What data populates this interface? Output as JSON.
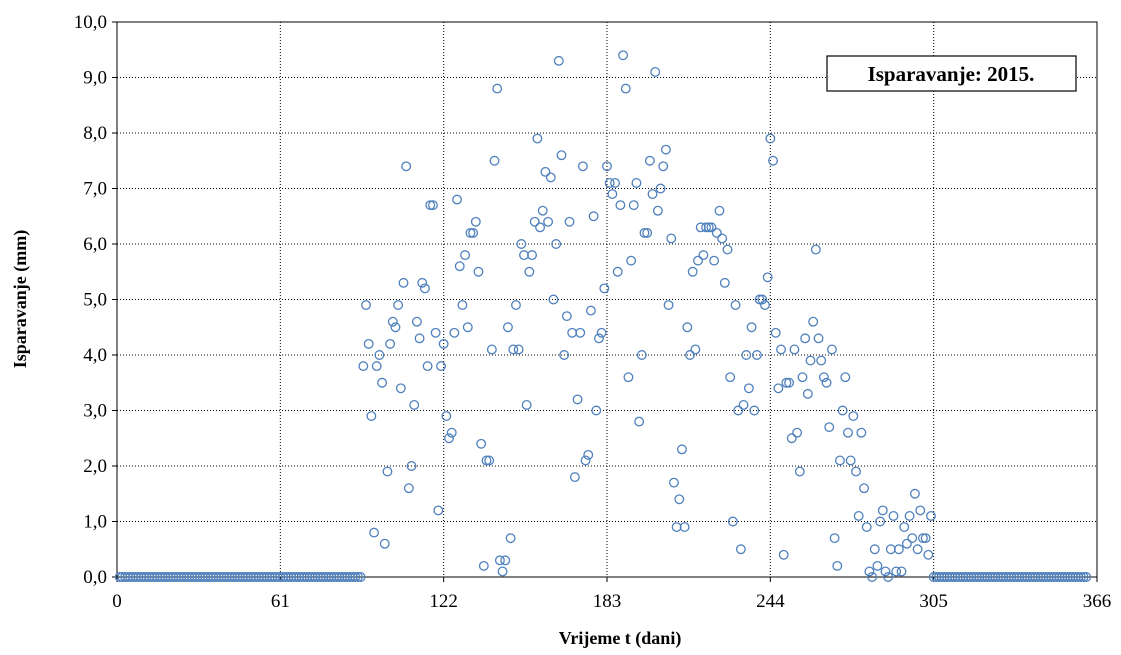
{
  "chart_data": {
    "type": "scatter",
    "title": "Isparavanje: 2015.",
    "xlabel": "Vrijeme  t (dani)",
    "ylabel": "Isparavanje  (mm)",
    "xlim": [
      0,
      366
    ],
    "ylim": [
      0,
      10
    ],
    "x_ticks": [
      "0",
      "61",
      "122",
      "183",
      "244",
      "305",
      "366"
    ],
    "y_ticks": [
      "0,0",
      "1,0",
      "2,0",
      "3,0",
      "4,0",
      "5,0",
      "6,0",
      "7,0",
      "8,0",
      "9,0",
      "10,0"
    ],
    "grid": "dotted",
    "legend_position": "top-right",
    "marker_color": "#4f81bd",
    "series": [
      {
        "values": [
          0,
          0,
          0,
          0,
          0,
          0,
          0,
          0,
          0,
          0,
          0,
          0,
          0,
          0,
          0,
          0,
          0,
          0,
          0,
          0,
          0,
          0,
          0,
          0,
          0,
          0,
          0,
          0,
          0,
          0,
          0,
          0,
          0,
          0,
          0,
          0,
          0,
          0,
          0,
          0,
          0,
          0,
          0,
          0,
          0,
          0,
          0,
          0,
          0,
          0,
          0,
          0,
          0,
          0,
          0,
          0,
          0,
          0,
          0,
          0,
          0,
          0,
          0,
          0,
          0,
          0,
          0,
          0,
          0,
          0,
          0,
          0,
          0,
          0,
          0,
          0,
          0,
          0,
          0,
          0,
          0,
          0,
          0,
          0,
          0,
          0,
          0,
          0,
          0,
          0,
          0,
          3.8,
          4.9,
          4.2,
          2.9,
          0.8,
          3.8,
          4.0,
          3.5,
          0.6,
          1.9,
          4.2,
          4.6,
          4.5,
          4.9,
          3.4,
          5.3,
          7.4,
          1.6,
          2.0,
          3.1,
          4.6,
          4.3,
          5.3,
          5.2,
          3.8,
          6.7,
          6.7,
          4.4,
          1.2,
          3.8,
          4.2,
          2.9,
          2.5,
          2.6,
          4.4,
          6.8,
          5.6,
          4.9,
          5.8,
          4.5,
          6.2,
          6.2,
          6.4,
          5.5,
          2.4,
          0.2,
          2.1,
          2.1,
          4.1,
          7.5,
          8.8,
          0.3,
          0.1,
          0.3,
          4.5,
          0.7,
          4.1,
          4.9,
          4.1,
          6.0,
          5.8,
          3.1,
          5.5,
          5.8,
          6.4,
          7.9,
          6.3,
          6.6,
          7.3,
          6.4,
          7.2,
          5.0,
          6.0,
          9.3,
          7.6,
          4.0,
          4.7,
          6.4,
          4.4,
          1.8,
          3.2,
          4.4,
          7.4,
          2.1,
          2.2,
          4.8,
          6.5,
          3.0,
          4.3,
          4.4,
          5.2,
          7.4,
          7.1,
          6.9,
          7.1,
          5.5,
          6.7,
          9.4,
          8.8,
          3.6,
          5.7,
          6.7,
          7.1,
          2.8,
          4.0,
          6.2,
          6.2,
          7.5,
          6.9,
          9.1,
          6.6,
          7.0,
          7.4,
          7.7,
          4.9,
          6.1,
          1.7,
          0.9,
          1.4,
          2.3,
          0.9,
          4.5,
          4.0,
          5.5,
          4.1,
          5.7,
          6.3,
          5.8,
          6.3,
          6.3,
          6.3,
          5.7,
          6.2,
          6.6,
          6.1,
          5.3,
          5.9,
          3.6,
          1.0,
          4.9,
          3.0,
          0.5,
          3.1,
          4.0,
          3.4,
          4.5,
          3.0,
          4.0,
          5.0,
          5.0,
          4.9,
          5.4,
          7.9,
          7.5,
          4.4,
          3.4,
          4.1,
          0.4,
          3.5,
          3.5,
          2.5,
          4.1,
          2.6,
          1.9,
          3.6,
          4.3,
          3.3,
          3.9,
          4.6,
          5.9,
          4.3,
          3.9,
          3.6,
          3.5,
          2.7,
          4.1,
          0.7,
          0.2,
          2.1,
          3.0,
          3.6,
          2.6,
          2.1,
          2.9,
          1.9,
          1.1,
          2.6,
          1.6,
          0.9,
          0.1,
          0,
          0.5,
          0.2,
          1.0,
          1.2,
          0.1,
          0,
          0.5,
          1.1,
          0.1,
          0.5,
          0.1,
          0.9,
          0.6,
          1.1,
          0.7,
          1.5,
          0.5,
          1.2,
          0.7,
          0.7,
          0.4,
          1.1,
          0,
          0,
          0,
          0,
          0,
          0,
          0,
          0,
          0,
          0,
          0,
          0,
          0,
          0,
          0,
          0,
          0,
          0,
          0,
          0,
          0,
          0,
          0,
          0,
          0,
          0,
          0,
          0,
          0,
          0,
          0,
          0,
          0,
          0,
          0,
          0,
          0,
          0,
          0,
          0,
          0,
          0,
          0,
          0,
          0,
          0,
          0,
          0,
          0,
          0,
          0,
          0,
          0,
          0,
          0,
          0,
          0,
          0
        ]
      }
    ]
  }
}
